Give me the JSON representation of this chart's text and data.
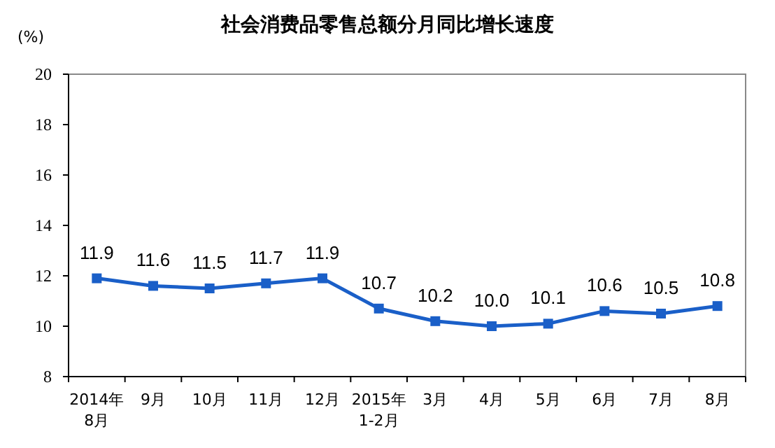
{
  "chart_data": {
    "type": "line",
    "title": "社会消费品零售总额分月同比增长速度",
    "ylabel": "(%)",
    "categories": [
      "2014年\n8月",
      "9月",
      "10月",
      "11月",
      "12月",
      "2015年\n1-2月",
      "3月",
      "4月",
      "5月",
      "6月",
      "7月",
      "8月"
    ],
    "series": [
      {
        "color": "#1a5fc8",
        "values": [
          11.9,
          11.6,
          11.5,
          11.7,
          11.9,
          10.7,
          10.2,
          10.0,
          10.1,
          10.6,
          10.5,
          10.8
        ]
      }
    ],
    "value_labels": [
      "11.9",
      "11.6",
      "11.5",
      "11.7",
      "11.9",
      "10.7",
      "10.2",
      "10.0",
      "10.1",
      "10.6",
      "10.5",
      "10.8"
    ],
    "ylim": [
      8,
      20
    ],
    "yticks": [
      8,
      10,
      12,
      14,
      16,
      18,
      20
    ],
    "marker": "square",
    "line_style": "solid",
    "grid": false
  }
}
